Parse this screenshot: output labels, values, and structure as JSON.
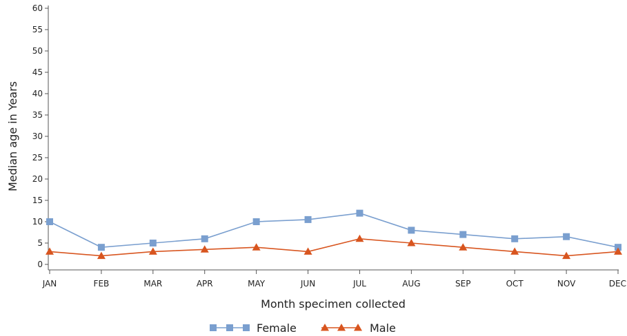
{
  "chart_data": {
    "type": "line",
    "xlabel": "Month specimen collected",
    "ylabel": "Median age in Years",
    "categories": [
      "JAN",
      "FEB",
      "MAR",
      "APR",
      "MAY",
      "JUN",
      "JUL",
      "AUG",
      "SEP",
      "OCT",
      "NOV",
      "DEC"
    ],
    "ylim": [
      0,
      60
    ],
    "yticks": [
      0,
      5,
      10,
      15,
      20,
      25,
      30,
      35,
      40,
      45,
      50,
      55,
      60
    ],
    "grid": false,
    "legend_position": "bottom",
    "series": [
      {
        "name": "Female",
        "color": "#7a9fcf",
        "marker": "square",
        "values": [
          10,
          4,
          5,
          6,
          10,
          10.5,
          12,
          8,
          7,
          6,
          6.5,
          4
        ]
      },
      {
        "name": "Male",
        "color": "#d8551f",
        "marker": "triangle",
        "values": [
          3,
          2,
          3,
          3.5,
          4,
          3,
          6,
          5,
          4,
          3,
          2,
          3
        ]
      }
    ]
  }
}
